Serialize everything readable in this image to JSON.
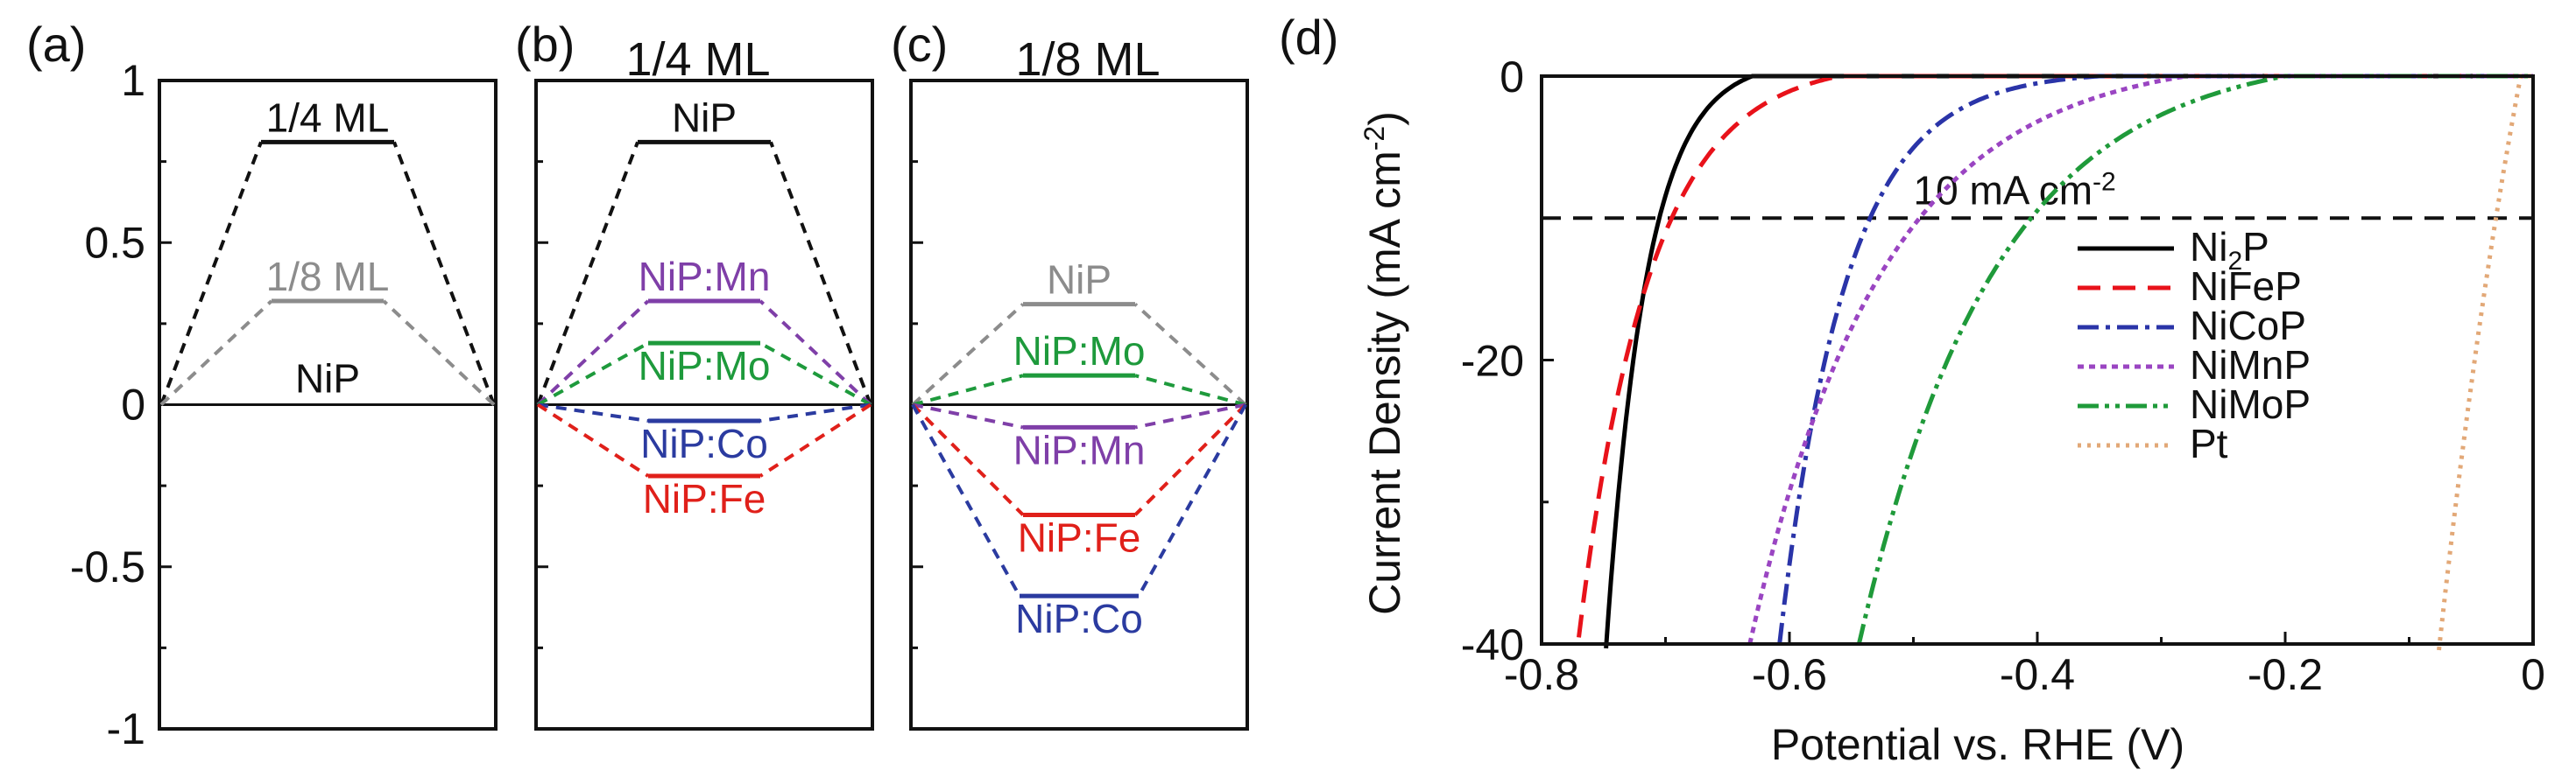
{
  "chart_data": [
    {
      "panel": "(a)",
      "type": "line",
      "header": "",
      "ylim": [
        -1,
        1
      ],
      "y_ticks": [
        "1",
        "0.5",
        "0",
        "-0.5",
        "-1"
      ],
      "y_tick_values": [
        1,
        0.5,
        0,
        -0.5,
        -1
      ],
      "levels": [
        {
          "label": "1/4 ML",
          "value": 0.81,
          "color": "#111111",
          "label_above": true
        },
        {
          "label": "1/8 ML",
          "value": 0.32,
          "color": "#8c8c8c",
          "label_above": true
        },
        {
          "label": "NiP",
          "value": 0.0,
          "color": "#111111",
          "label_above": true
        }
      ]
    },
    {
      "panel": "(b)",
      "type": "line",
      "header": "1/4 ML",
      "ylim": [
        -1,
        1
      ],
      "levels": [
        {
          "label": "NiP",
          "value": 0.81,
          "color": "#111111",
          "label_above": true
        },
        {
          "label": "NiP:Mn",
          "value": 0.32,
          "color": "#7f3fa8",
          "label_above": true
        },
        {
          "label": "NiP:Mo",
          "value": 0.19,
          "color": "#1e9a3c",
          "label_above": false
        },
        {
          "label": "NiP:Co",
          "value": -0.05,
          "color": "#2b3ba0",
          "label_above": false
        },
        {
          "label": "NiP:Fe",
          "value": -0.22,
          "color": "#e0201a",
          "label_above": false
        }
      ]
    },
    {
      "panel": "(c)",
      "type": "line",
      "header": "1/8 ML",
      "ylim": [
        -1,
        1
      ],
      "levels": [
        {
          "label": "NiP",
          "value": 0.31,
          "color": "#8c8c8c",
          "label_above": true
        },
        {
          "label": "NiP:Mo",
          "value": 0.09,
          "color": "#1e9a3c",
          "label_above": true
        },
        {
          "label": "NiP:Mn",
          "value": -0.07,
          "color": "#7f3fa8",
          "label_above": false
        },
        {
          "label": "NiP:Fe",
          "value": -0.34,
          "color": "#e0201a",
          "label_above": false
        },
        {
          "label": "NiP:Co",
          "value": -0.59,
          "color": "#2b3ba0",
          "label_above": false
        }
      ]
    },
    {
      "panel": "(d)",
      "type": "line",
      "xlabel": "Potential vs. RHE (V)",
      "ylabel_main": "Current Density (mA cm",
      "ylabel_sup": "-2",
      "ylabel_end": ")",
      "xlim": [
        -0.8,
        0
      ],
      "ylim": [
        -40,
        0
      ],
      "x_ticks": [
        "-0.8",
        "-0.6",
        "-0.4",
        "-0.2",
        "0"
      ],
      "x_tick_values": [
        -0.8,
        -0.6,
        -0.4,
        -0.2,
        0
      ],
      "y_ticks": [
        "0",
        "-20",
        "-40"
      ],
      "y_tick_values": [
        0,
        -20,
        -40
      ],
      "reference_line": {
        "y": -10,
        "label": "10 mA cm",
        "label_sup": "-2"
      },
      "series": [
        {
          "name": "Ni",
          "sub": "2",
          "name_end": "P",
          "color": "#000000",
          "dash": "",
          "onset": -0.63,
          "k": 0.0327,
          "x_at_10": -0.705
        },
        {
          "name": "NiFeP",
          "sub": "",
          "name_end": "",
          "color": "#e8121a",
          "dash": "26,14",
          "onset": -0.56,
          "k": 0.0577,
          "x_at_10": -0.695
        },
        {
          "name": "NiCoP",
          "sub": "",
          "name_end": "",
          "color": "#2a34a8",
          "dash": "24,8,5,8",
          "onset": -0.35,
          "k": 0.0536,
          "x_at_10": -0.535
        },
        {
          "name": "NiMnP",
          "sub": "",
          "name_end": "",
          "color": "#9a45c2",
          "dash": "7,6",
          "onset": -0.28,
          "k": 0.107,
          "x_at_10": -0.495
        },
        {
          "name": "NiMoP",
          "sub": "",
          "name_end": "",
          "color": "#1f9a3a",
          "dash": "24,7,5,7,5,7",
          "onset": -0.2,
          "k": 0.11,
          "x_at_10": -0.405
        },
        {
          "name": "Pt",
          "sub": "",
          "name_end": "",
          "color": "#e2a877",
          "dash": "4,7",
          "onset": -0.01,
          "k": 0.12,
          "x_at_10": -0.03
        }
      ]
    }
  ]
}
